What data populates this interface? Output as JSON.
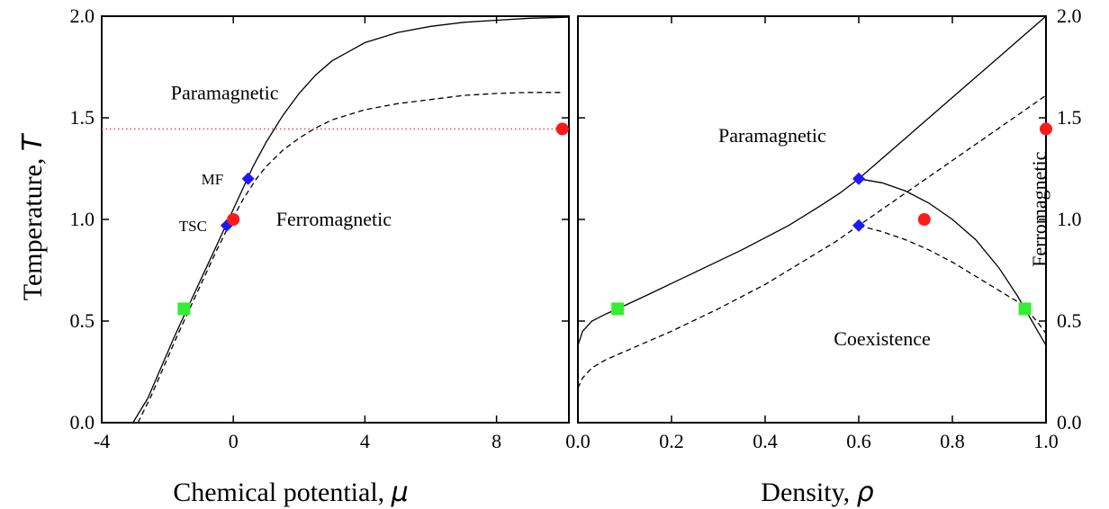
{
  "chart_data": [
    {
      "type": "line",
      "panel": "left",
      "xlabel": "Chemical potential, ",
      "xlabel_symbol": "μ",
      "ylabel": "Temperature, ",
      "ylabel_symbol": "T",
      "xlim": [
        -4,
        10.2
      ],
      "ylim": [
        0.0,
        2.0
      ],
      "xticks": [
        -4,
        0,
        4,
        8
      ],
      "xtick_labels": [
        "-4",
        "0",
        "4",
        "8"
      ],
      "yticks": [
        0.0,
        0.5,
        1.0,
        1.5,
        2.0
      ],
      "ytick_labels": [
        "0.0",
        "0.5",
        "1.0",
        "1.5",
        "2.0"
      ],
      "grid": false,
      "series": [
        {
          "style": "solid",
          "color": "#000000",
          "x": [
            -3.05,
            -2.6,
            -2.2,
            -1.8,
            -1.4,
            -1.0,
            -0.6,
            -0.2,
            0.2,
            0.6,
            1.0,
            1.5,
            2.0,
            2.5,
            3.0,
            4.0,
            5.0,
            6.0,
            7.0,
            8.0,
            9.0,
            10.2
          ],
          "y": [
            0.0,
            0.12,
            0.27,
            0.42,
            0.56,
            0.7,
            0.84,
            0.98,
            1.12,
            1.26,
            1.38,
            1.51,
            1.62,
            1.71,
            1.78,
            1.87,
            1.92,
            1.95,
            1.97,
            1.98,
            1.99,
            1.995
          ]
        },
        {
          "style": "dashed",
          "color": "#000000",
          "x": [
            -2.9,
            -2.5,
            -2.1,
            -1.7,
            -1.3,
            -0.9,
            -0.5,
            -0.1,
            0.3,
            0.7,
            1.0,
            1.5,
            2.0,
            2.5,
            3.0,
            4.0,
            5.0,
            6.0,
            7.0,
            8.0,
            9.0,
            10.0
          ],
          "y": [
            0.0,
            0.13,
            0.28,
            0.43,
            0.57,
            0.71,
            0.85,
            0.98,
            1.1,
            1.2,
            1.26,
            1.34,
            1.4,
            1.45,
            1.49,
            1.54,
            1.57,
            1.59,
            1.61,
            1.62,
            1.625,
            1.625
          ]
        },
        {
          "style": "dotted",
          "color": "#ff4d4d",
          "x": [
            -4,
            10.2
          ],
          "y": [
            1.445,
            1.445
          ]
        }
      ],
      "markers": [
        {
          "shape": "square",
          "color": "#33ee33",
          "x": -1.5,
          "y": 0.56
        },
        {
          "shape": "diamond",
          "color": "#1a1aff",
          "x": 0.45,
          "y": 1.2
        },
        {
          "shape": "diamond",
          "color": "#1a1aff",
          "x": -0.2,
          "y": 0.97
        },
        {
          "shape": "circle",
          "color": "#ff1a1a",
          "x": 0.0,
          "y": 1.0
        },
        {
          "shape": "circle",
          "color": "#ff1a1a",
          "x": 10.0,
          "y": 1.445
        }
      ],
      "region_labels": [
        {
          "text": "Paramagnetic",
          "x": -1.9,
          "y": 1.59,
          "anchor": "start"
        },
        {
          "text": "Ferromagnetic",
          "x": 1.3,
          "y": 0.97,
          "anchor": "start"
        }
      ],
      "annotations": [
        {
          "text": "MF",
          "x": -0.3,
          "y": 1.2,
          "anchor": "end"
        },
        {
          "text": "TSC",
          "x": -0.8,
          "y": 0.97,
          "anchor": "end"
        }
      ]
    },
    {
      "type": "line",
      "panel": "right",
      "xlabel": "Density, ",
      "xlabel_symbol": "ρ",
      "xlim": [
        0.0,
        1.0
      ],
      "ylim": [
        0.0,
        2.0
      ],
      "xticks": [
        0.0,
        0.2,
        0.4,
        0.6,
        0.8,
        1.0
      ],
      "xtick_labels": [
        "0.0",
        "0.2",
        "0.4",
        "0.6",
        "0.8",
        "1.0"
      ],
      "yticks": [
        0.0,
        0.5,
        1.0,
        1.5,
        2.0
      ],
      "ytick_labels": [
        "0.0",
        "0.5",
        "1.0",
        "1.5",
        "2.0"
      ],
      "grid": false,
      "series": [
        {
          "style": "solid",
          "color": "#000000",
          "x": [
            0.0,
            0.01,
            0.03,
            0.06,
            0.085,
            0.15,
            0.25,
            0.35,
            0.45,
            0.52,
            0.56,
            0.6,
            0.7,
            0.8,
            0.9,
            1.0
          ],
          "y": [
            0.38,
            0.45,
            0.5,
            0.535,
            0.56,
            0.63,
            0.74,
            0.85,
            0.97,
            1.07,
            1.13,
            1.2,
            1.4,
            1.6,
            1.8,
            2.0
          ]
        },
        {
          "style": "solid",
          "color": "#000000",
          "x": [
            0.6,
            0.65,
            0.7,
            0.75,
            0.8,
            0.85,
            0.9,
            0.94,
            0.97,
            0.99,
            1.0
          ],
          "y": [
            1.2,
            1.18,
            1.14,
            1.08,
            1.0,
            0.9,
            0.76,
            0.62,
            0.5,
            0.42,
            0.38
          ]
        },
        {
          "style": "dashed",
          "color": "#000000",
          "x": [
            0.0,
            0.01,
            0.03,
            0.06,
            0.1,
            0.2,
            0.3,
            0.4,
            0.5,
            0.55,
            0.6,
            0.7,
            0.8,
            0.9,
            1.0
          ],
          "y": [
            0.17,
            0.22,
            0.27,
            0.31,
            0.35,
            0.45,
            0.56,
            0.68,
            0.82,
            0.89,
            0.97,
            1.13,
            1.29,
            1.45,
            1.61
          ]
        },
        {
          "style": "dashed",
          "color": "#000000",
          "x": [
            0.6,
            0.65,
            0.7,
            0.75,
            0.8,
            0.85,
            0.9,
            0.95,
            0.98,
            1.0
          ],
          "y": [
            0.97,
            0.94,
            0.9,
            0.85,
            0.79,
            0.72,
            0.65,
            0.58,
            0.5,
            0.44
          ]
        }
      ],
      "markers": [
        {
          "shape": "square",
          "color": "#33ee33",
          "x": 0.085,
          "y": 0.56
        },
        {
          "shape": "square",
          "color": "#33ee33",
          "x": 0.955,
          "y": 0.56
        },
        {
          "shape": "diamond",
          "color": "#1a1aff",
          "x": 0.6,
          "y": 1.2
        },
        {
          "shape": "diamond",
          "color": "#1a1aff",
          "x": 0.6,
          "y": 0.97
        },
        {
          "shape": "circle",
          "color": "#ff1a1a",
          "x": 0.74,
          "y": 1.0
        },
        {
          "shape": "circle",
          "color": "#ff1a1a",
          "x": 1.0,
          "y": 1.445
        }
      ],
      "region_labels": [
        {
          "text": "Paramagnetic",
          "x": 0.3,
          "y": 1.38,
          "anchor": "start"
        },
        {
          "text": "Coexistence",
          "x": 0.65,
          "y": 0.38,
          "anchor": "middle"
        },
        {
          "text": "Ferromagnetic",
          "x": 0.99,
          "y": 1.05,
          "anchor": "middle",
          "rotate": -90
        }
      ]
    }
  ]
}
